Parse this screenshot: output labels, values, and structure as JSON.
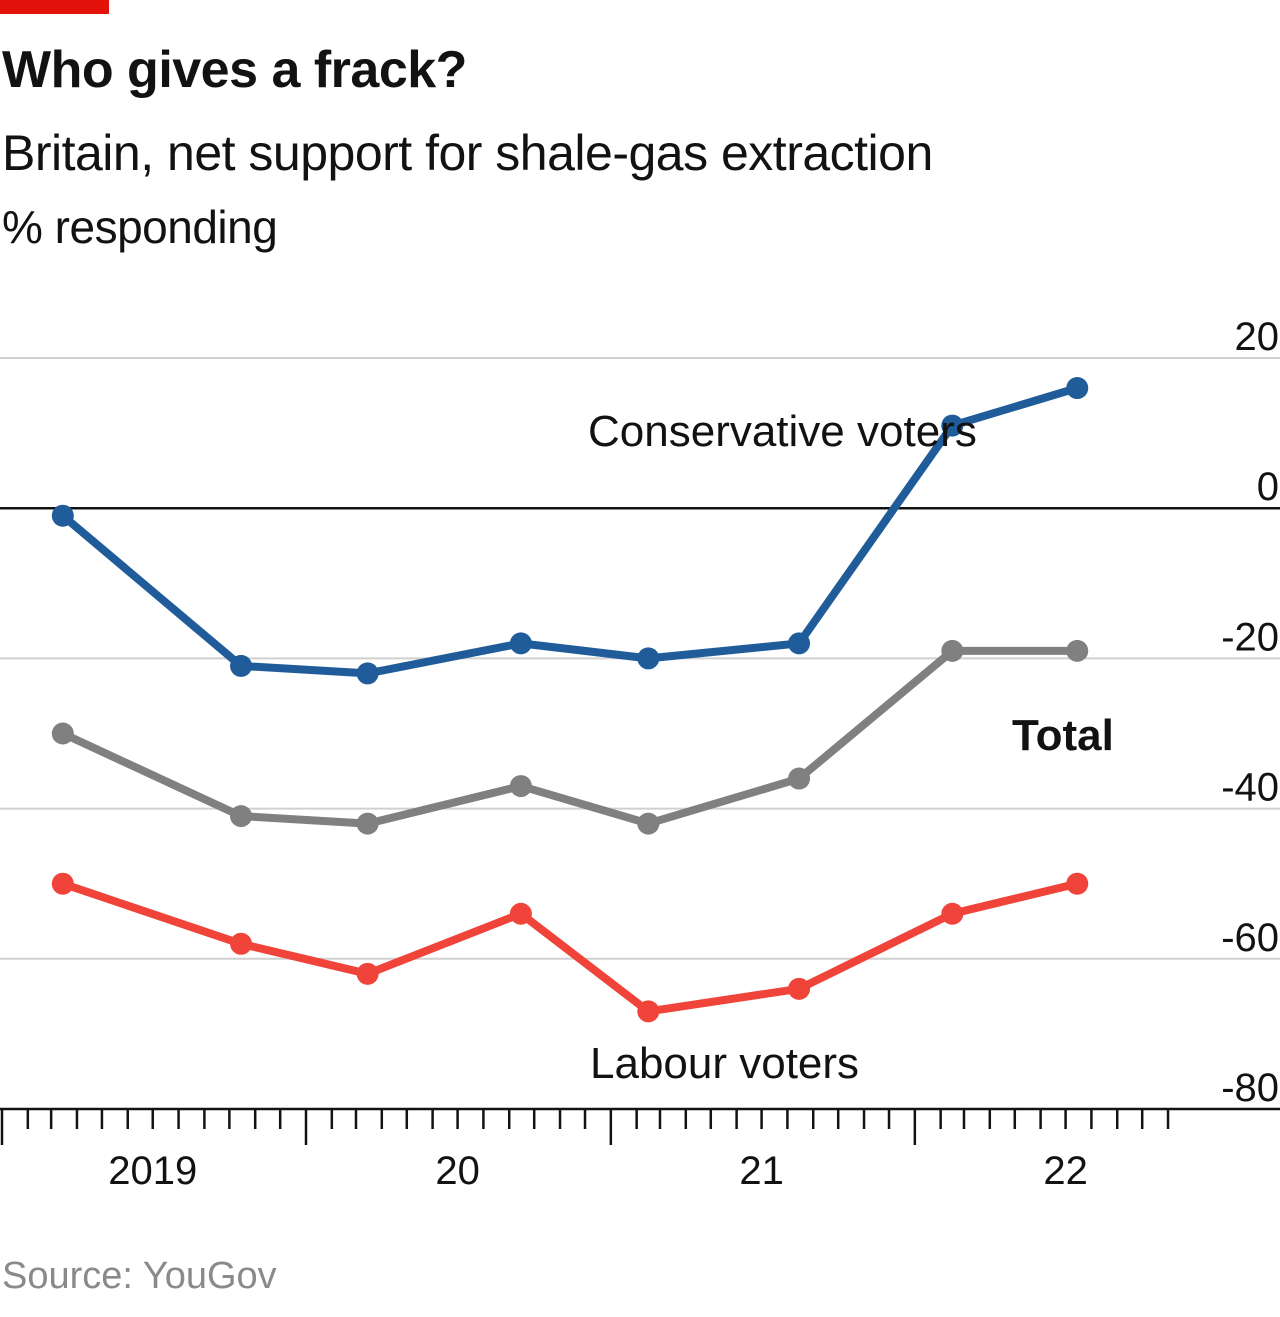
{
  "header": {
    "title": "Who gives a frack?",
    "subtitle": "Britain, net support for shale-gas extraction",
    "unit": "% responding"
  },
  "footer": {
    "source": "Source: YouGov"
  },
  "colors": {
    "accent": "#e3120b",
    "conservative": "#1f5c99",
    "total": "#808080",
    "labour": "#f0443a",
    "grid": "#d0d0d0",
    "axis": "#121212"
  },
  "chart_data": {
    "type": "line",
    "title": "Who gives a frack?",
    "subtitle": "Britain, net support for shale-gas extraction",
    "ylabel": "% responding",
    "ylim": [
      -80,
      20
    ],
    "yticks": [
      20,
      0,
      -20,
      -40,
      -60,
      -80
    ],
    "xlim": [
      "2019-01-01",
      "2022-12-31"
    ],
    "xticks": [
      {
        "label": "2019",
        "date": "2019-01-01"
      },
      {
        "label": "20",
        "date": "2020-01-01"
      },
      {
        "label": "21",
        "date": "2021-01-01"
      },
      {
        "label": "22",
        "date": "2022-01-01"
      }
    ],
    "grid": true,
    "x": [
      "2019-03",
      "2019-10",
      "2020-03",
      "2020-09",
      "2021-02",
      "2021-08",
      "2022-02",
      "2022-07"
    ],
    "series": [
      {
        "name": "Conservative voters",
        "color_key": "conservative",
        "values": [
          -1,
          -21,
          -22,
          -18,
          -20,
          -18,
          11,
          16
        ]
      },
      {
        "name": "Total",
        "color_key": "total",
        "values": [
          -30,
          -41,
          -42,
          -37,
          -42,
          -36,
          -19,
          -19
        ]
      },
      {
        "name": "Labour voters",
        "color_key": "labour",
        "values": [
          -50,
          -58,
          -62,
          -54,
          -67,
          -64,
          -54,
          -50
        ]
      }
    ],
    "ytick_labels": [
      "20",
      "0",
      "-20",
      "-40",
      "-60",
      "-80"
    ],
    "series_labels": [
      "Conservative voters",
      "Total",
      "Labour voters"
    ]
  }
}
